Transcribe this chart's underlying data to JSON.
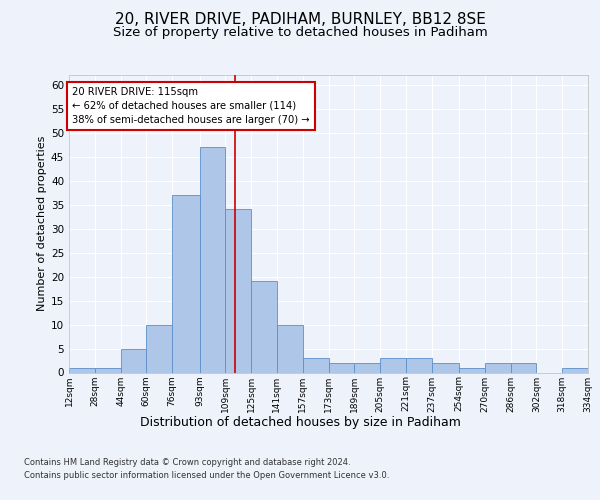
{
  "title1": "20, RIVER DRIVE, PADIHAM, BURNLEY, BB12 8SE",
  "title2": "Size of property relative to detached houses in Padiham",
  "xlabel": "Distribution of detached houses by size in Padiham",
  "ylabel": "Number of detached properties",
  "footnote1": "Contains HM Land Registry data © Crown copyright and database right 2024.",
  "footnote2": "Contains public sector information licensed under the Open Government Licence v3.0.",
  "annotation_line1": "20 RIVER DRIVE: 115sqm",
  "annotation_line2": "← 62% of detached houses are smaller (114)",
  "annotation_line3": "38% of semi-detached houses are larger (70) →",
  "bar_color": "#aec6e8",
  "bar_edge_color": "#5b8fc9",
  "ref_line_color": "#cc0000",
  "ref_line_x": 115,
  "bin_edges": [
    12,
    28,
    44,
    60,
    76,
    93,
    109,
    125,
    141,
    157,
    173,
    189,
    205,
    221,
    237,
    254,
    270,
    286,
    302,
    318,
    334
  ],
  "bin_labels": [
    "12sqm",
    "28sqm",
    "44sqm",
    "60sqm",
    "76sqm",
    "93sqm",
    "109sqm",
    "125sqm",
    "141sqm",
    "157sqm",
    "173sqm",
    "189sqm",
    "205sqm",
    "221sqm",
    "237sqm",
    "254sqm",
    "270sqm",
    "286sqm",
    "302sqm",
    "318sqm",
    "334sqm"
  ],
  "counts": [
    1,
    1,
    5,
    10,
    37,
    47,
    34,
    19,
    10,
    3,
    2,
    2,
    3,
    3,
    2,
    1,
    2,
    2,
    0,
    1
  ],
  "ylim": [
    0,
    62
  ],
  "yticks": [
    0,
    5,
    10,
    15,
    20,
    25,
    30,
    35,
    40,
    45,
    50,
    55,
    60
  ],
  "bg_color": "#edf2fb",
  "plot_bg_color": "#edf2fb",
  "grid_color": "#ffffff",
  "title1_fontsize": 11,
  "title2_fontsize": 9.5,
  "annot_box_color": "#ffffff",
  "annot_box_edge": "#cc0000"
}
